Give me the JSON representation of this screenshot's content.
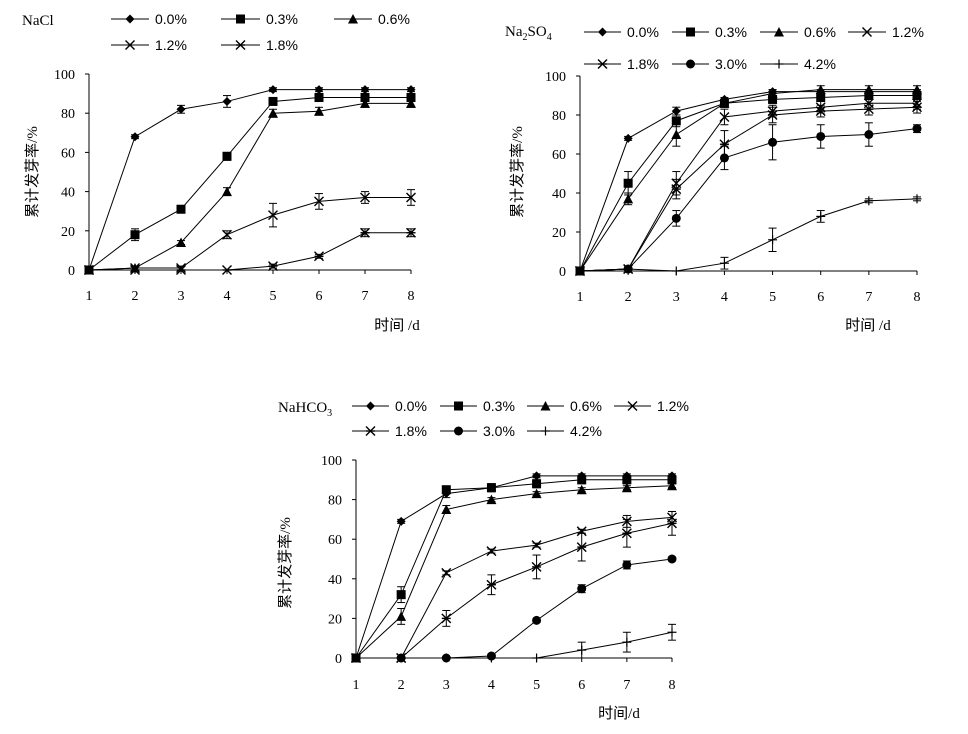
{
  "chart_data": [
    {
      "type": "line",
      "title": "NaCl",
      "title_sub": "",
      "xlabel": "时间 /d",
      "ylabel": "累计发芽率/%",
      "x": [
        1,
        2,
        3,
        4,
        5,
        6,
        7,
        8
      ],
      "ylim": [
        0,
        100
      ],
      "yticks": [
        0,
        20,
        40,
        60,
        80,
        100
      ],
      "series": [
        {
          "name": "0.0%",
          "marker": "diamond",
          "values": [
            0,
            68,
            82,
            86,
            92,
            92,
            92,
            92
          ],
          "err": [
            0,
            1,
            2,
            3,
            1,
            1,
            1,
            1
          ]
        },
        {
          "name": "0.3%",
          "marker": "square",
          "values": [
            0,
            18,
            31,
            58,
            86,
            88,
            88,
            88
          ],
          "err": [
            0,
            3,
            1,
            2,
            1,
            2,
            2,
            2
          ]
        },
        {
          "name": "0.6%",
          "marker": "triangle",
          "values": [
            0,
            1,
            14,
            40,
            80,
            81,
            85,
            85
          ],
          "err": [
            0,
            1,
            1,
            2,
            2,
            2,
            2,
            2
          ]
        },
        {
          "name": "1.2%",
          "marker": "x",
          "values": [
            0,
            1,
            1,
            18,
            28,
            35,
            37,
            37
          ],
          "err": [
            0,
            1,
            1,
            2,
            6,
            4,
            3,
            4
          ]
        },
        {
          "name": "1.8%",
          "marker": "asterisk",
          "values": [
            0,
            0,
            0,
            0,
            2,
            7,
            19,
            19
          ],
          "err": [
            0,
            0,
            0,
            0,
            1,
            1,
            2,
            2
          ]
        }
      ]
    },
    {
      "type": "line",
      "title": "Na",
      "title_sub": "2",
      "title_mid": "SO",
      "title_sub2": "4",
      "xlabel": "时间 /d",
      "ylabel": "累计发芽率/%",
      "x": [
        1,
        2,
        3,
        4,
        5,
        6,
        7,
        8
      ],
      "ylim": [
        0,
        100
      ],
      "yticks": [
        0,
        20,
        40,
        60,
        80,
        100
      ],
      "series": [
        {
          "name": "0.0%",
          "marker": "diamond",
          "values": [
            0,
            68,
            82,
            88,
            92,
            92,
            92,
            92
          ],
          "err": [
            0,
            1,
            2,
            1,
            1,
            1,
            1,
            1
          ]
        },
        {
          "name": "0.3%",
          "marker": "square",
          "values": [
            0,
            45,
            77,
            86,
            88,
            89,
            90,
            90
          ],
          "err": [
            0,
            6,
            3,
            2,
            2,
            2,
            2,
            2
          ]
        },
        {
          "name": "0.6%",
          "marker": "triangle",
          "values": [
            0,
            37,
            70,
            86,
            91,
            93,
            93,
            93
          ],
          "err": [
            0,
            3,
            6,
            2,
            2,
            2,
            2,
            2
          ]
        },
        {
          "name": "1.2%",
          "marker": "x",
          "values": [
            0,
            1,
            45,
            79,
            82,
            84,
            86,
            86
          ],
          "err": [
            0,
            1,
            6,
            4,
            3,
            3,
            3,
            3
          ]
        },
        {
          "name": "1.8%",
          "marker": "asterisk",
          "values": [
            0,
            1,
            42,
            65,
            80,
            82,
            83,
            84
          ],
          "err": [
            0,
            1,
            5,
            7,
            4,
            3,
            3,
            3
          ]
        },
        {
          "name": "3.0%",
          "marker": "circle",
          "values": [
            0,
            1,
            27,
            58,
            66,
            69,
            70,
            73
          ],
          "err": [
            0,
            0,
            4,
            6,
            9,
            6,
            6,
            2
          ]
        },
        {
          "name": "4.2%",
          "marker": "plus",
          "values": [
            0,
            1,
            0,
            4,
            16,
            28,
            36,
            37
          ],
          "err": [
            0,
            0,
            0,
            3,
            6,
            3,
            1,
            1
          ]
        }
      ]
    },
    {
      "type": "line",
      "title": "NaHCO",
      "title_sub": "3",
      "xlabel": "时间/d",
      "ylabel": "累计发芽率/%",
      "x": [
        1,
        2,
        3,
        4,
        5,
        6,
        7,
        8
      ],
      "ylim": [
        0,
        100
      ],
      "yticks": [
        0,
        20,
        40,
        60,
        80,
        100
      ],
      "series": [
        {
          "name": "0.0%",
          "marker": "diamond",
          "values": [
            0,
            69,
            83,
            86,
            92,
            92,
            92,
            92
          ],
          "err": [
            0,
            1,
            2,
            2,
            1,
            1,
            1,
            1
          ]
        },
        {
          "name": "0.3%",
          "marker": "square",
          "values": [
            0,
            32,
            85,
            86,
            88,
            90,
            90,
            90
          ],
          "err": [
            0,
            4,
            1,
            2,
            2,
            2,
            2,
            2
          ]
        },
        {
          "name": "0.6%",
          "marker": "triangle",
          "values": [
            0,
            21,
            75,
            80,
            83,
            85,
            86,
            87
          ],
          "err": [
            0,
            4,
            2,
            1,
            1,
            1,
            1,
            1
          ]
        },
        {
          "name": "1.2%",
          "marker": "x",
          "values": [
            0,
            0,
            43,
            54,
            57,
            64,
            69,
            71
          ],
          "err": [
            0,
            0,
            1,
            1,
            1,
            1,
            3,
            3
          ]
        },
        {
          "name": "1.8%",
          "marker": "asterisk",
          "values": [
            0,
            0,
            20,
            37,
            46,
            56,
            63,
            68
          ],
          "err": [
            0,
            0,
            4,
            5,
            6,
            7,
            7,
            6
          ]
        },
        {
          "name": "3.0%",
          "marker": "circle",
          "values": [
            0,
            0,
            0,
            1,
            19,
            35,
            47,
            50
          ],
          "err": [
            0,
            0,
            0,
            1,
            1,
            2,
            2,
            1
          ]
        },
        {
          "name": "4.2%",
          "marker": "plus",
          "values": [
            0,
            0,
            0,
            0,
            0,
            4,
            8,
            13
          ],
          "err": [
            0,
            0,
            0,
            0,
            0,
            4,
            5,
            4
          ]
        }
      ]
    }
  ]
}
